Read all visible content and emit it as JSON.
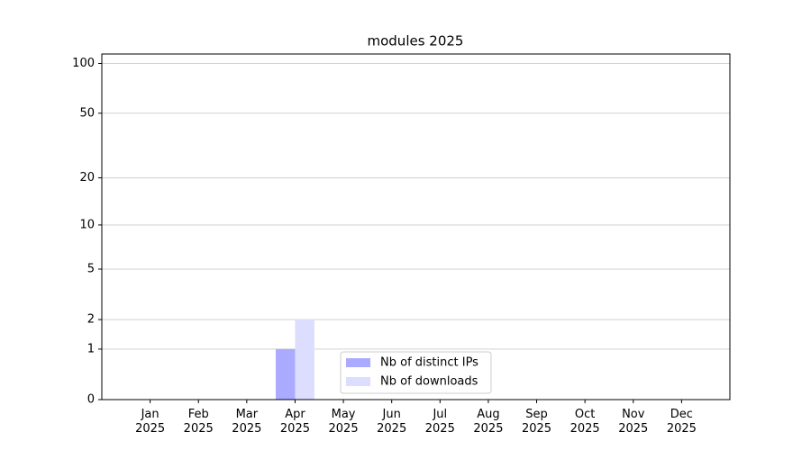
{
  "chart_data": {
    "type": "bar",
    "title": "modules 2025",
    "categories": [
      "Jan 2025",
      "Feb 2025",
      "Mar 2025",
      "Apr 2025",
      "May 2025",
      "Jun 2025",
      "Jul 2025",
      "Aug 2025",
      "Sep 2025",
      "Oct 2025",
      "Nov 2025",
      "Dec 2025"
    ],
    "series": [
      {
        "name": "Nb of distinct IPs",
        "color": "#aaaaff",
        "values": [
          0,
          0,
          0,
          1,
          0,
          0,
          0,
          0,
          0,
          0,
          0,
          0
        ]
      },
      {
        "name": "Nb of downloads",
        "color": "#ddddff",
        "values": [
          0,
          0,
          0,
          2,
          0,
          0,
          0,
          0,
          0,
          0,
          0,
          0
        ]
      }
    ],
    "yscale": "log1p",
    "ylim": [
      0,
      114
    ],
    "yticks": [
      0,
      1,
      2,
      5,
      10,
      20,
      50,
      100
    ],
    "grid": true,
    "legend": "lower center"
  }
}
